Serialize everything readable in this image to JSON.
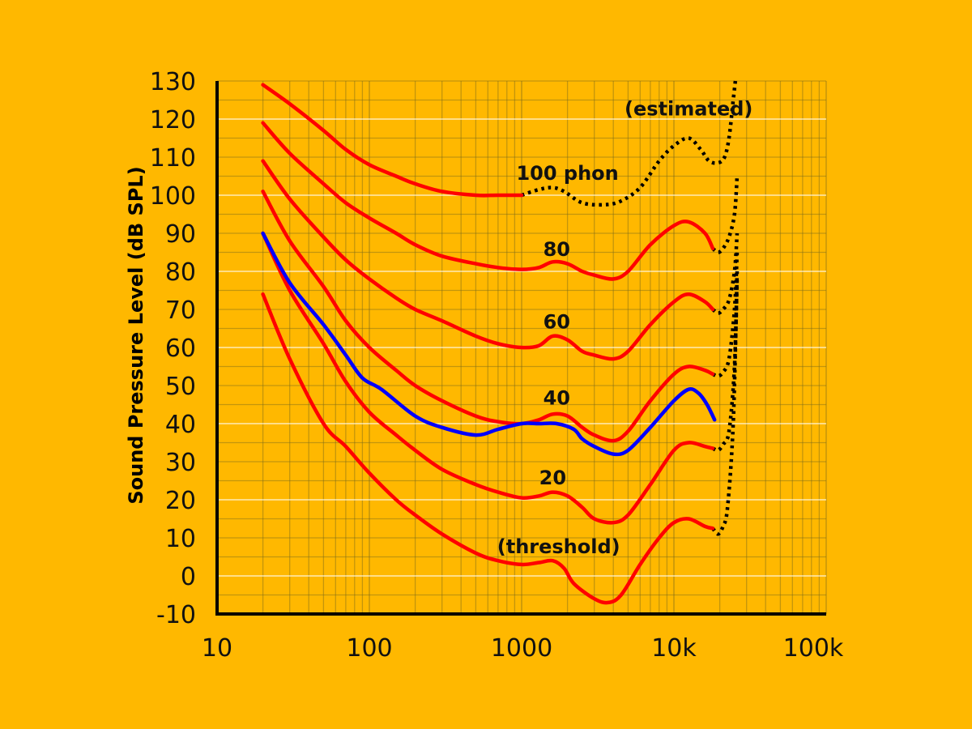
{
  "chart_data": {
    "type": "line",
    "title": "",
    "xlabel": "",
    "ylabel": "Sound Pressure Level (dB SPL)",
    "x_scale": "log",
    "xlim": [
      10,
      100000
    ],
    "ylim": [
      -10,
      130
    ],
    "x_ticks": [
      10,
      100,
      1000,
      10000,
      100000
    ],
    "x_tick_labels": [
      "10",
      "100",
      "1000",
      "10k",
      "100k"
    ],
    "y_ticks": [
      -10,
      0,
      10,
      20,
      30,
      40,
      50,
      60,
      70,
      80,
      90,
      100,
      110,
      120,
      130
    ],
    "y_tick_labels": [
      "-10",
      "0",
      "10",
      "20",
      "30",
      "40",
      "50",
      "60",
      "70",
      "80",
      "90",
      "100",
      "110",
      "120",
      "130"
    ],
    "grid": true,
    "background": "#FFB800",
    "series": [
      {
        "id": "threshold",
        "color": "#FF0000",
        "style": "solid",
        "points": [
          [
            20,
            74
          ],
          [
            30,
            57
          ],
          [
            50,
            40
          ],
          [
            70,
            34
          ],
          [
            100,
            27
          ],
          [
            150,
            20
          ],
          [
            200,
            16
          ],
          [
            300,
            11
          ],
          [
            500,
            6
          ],
          [
            700,
            4
          ],
          [
            1000,
            3
          ],
          [
            1300,
            3.5
          ],
          [
            1600,
            4
          ],
          [
            1900,
            2
          ],
          [
            2200,
            -2
          ],
          [
            3000,
            -6
          ],
          [
            3700,
            -7
          ],
          [
            4500,
            -5
          ],
          [
            6000,
            3
          ],
          [
            8000,
            10
          ],
          [
            10000,
            14
          ],
          [
            12500,
            15
          ],
          [
            16000,
            13
          ],
          [
            18000,
            12.5
          ]
        ],
        "extension": [
          [
            18000,
            12.5
          ],
          [
            19500,
            11
          ],
          [
            21000,
            13
          ],
          [
            22500,
            18
          ],
          [
            24500,
            40
          ],
          [
            26000,
            78
          ]
        ]
      },
      {
        "id": "20-phon",
        "color": "#FF0000",
        "style": "solid",
        "points": [
          [
            20,
            90
          ],
          [
            30,
            75
          ],
          [
            50,
            61
          ],
          [
            70,
            51
          ],
          [
            100,
            43
          ],
          [
            150,
            37
          ],
          [
            200,
            33
          ],
          [
            300,
            28
          ],
          [
            500,
            24
          ],
          [
            700,
            22
          ],
          [
            1000,
            20.5
          ],
          [
            1300,
            21
          ],
          [
            1600,
            22
          ],
          [
            2000,
            21
          ],
          [
            2500,
            18
          ],
          [
            3000,
            15
          ],
          [
            4000,
            14
          ],
          [
            5000,
            16
          ],
          [
            7000,
            24
          ],
          [
            10000,
            33
          ],
          [
            12500,
            35
          ],
          [
            16000,
            34
          ],
          [
            18000,
            33.5
          ]
        ],
        "extension": [
          [
            18000,
            33.5
          ],
          [
            19500,
            33
          ],
          [
            21000,
            34.5
          ],
          [
            23000,
            38
          ],
          [
            25000,
            55
          ],
          [
            26000,
            80
          ]
        ]
      },
      {
        "id": "40-phon",
        "color": "#FF0000",
        "style": "solid",
        "points": [
          [
            20,
            101
          ],
          [
            30,
            88
          ],
          [
            50,
            76
          ],
          [
            70,
            67
          ],
          [
            100,
            60
          ],
          [
            150,
            54
          ],
          [
            200,
            50
          ],
          [
            300,
            46
          ],
          [
            500,
            42
          ],
          [
            700,
            40.5
          ],
          [
            1000,
            40
          ],
          [
            1300,
            41
          ],
          [
            1600,
            42.5
          ],
          [
            2000,
            42
          ],
          [
            2500,
            39
          ],
          [
            3000,
            37
          ],
          [
            4000,
            35.5
          ],
          [
            5000,
            38
          ],
          [
            7000,
            46
          ],
          [
            10000,
            53
          ],
          [
            12500,
            55
          ],
          [
            16000,
            54
          ],
          [
            18000,
            53
          ]
        ],
        "extension": [
          [
            18000,
            53
          ],
          [
            19500,
            52.5
          ],
          [
            21000,
            53.5
          ],
          [
            23000,
            57
          ],
          [
            25000,
            70
          ],
          [
            26000,
            85
          ]
        ]
      },
      {
        "id": "60-phon",
        "color": "#FF0000",
        "style": "solid",
        "points": [
          [
            20,
            109
          ],
          [
            30,
            99
          ],
          [
            50,
            89
          ],
          [
            70,
            83
          ],
          [
            100,
            78
          ],
          [
            150,
            73
          ],
          [
            200,
            70
          ],
          [
            300,
            67
          ],
          [
            500,
            63
          ],
          [
            700,
            61
          ],
          [
            1000,
            60
          ],
          [
            1300,
            60.5
          ],
          [
            1600,
            63
          ],
          [
            2000,
            62
          ],
          [
            2500,
            59
          ],
          [
            3000,
            58
          ],
          [
            4000,
            57
          ],
          [
            5000,
            59
          ],
          [
            7000,
            66
          ],
          [
            10000,
            72
          ],
          [
            12500,
            74
          ],
          [
            16000,
            72
          ],
          [
            18000,
            70
          ]
        ],
        "extension": [
          [
            18000,
            70
          ],
          [
            19500,
            69
          ],
          [
            21000,
            70
          ],
          [
            23000,
            72.5
          ],
          [
            25000,
            80
          ],
          [
            26000,
            90
          ]
        ]
      },
      {
        "id": "80-phon",
        "color": "#FF0000",
        "style": "solid",
        "points": [
          [
            20,
            119
          ],
          [
            30,
            111
          ],
          [
            50,
            103
          ],
          [
            70,
            98
          ],
          [
            100,
            94
          ],
          [
            150,
            90
          ],
          [
            200,
            87
          ],
          [
            300,
            84
          ],
          [
            500,
            82
          ],
          [
            700,
            81
          ],
          [
            1000,
            80.5
          ],
          [
            1300,
            81
          ],
          [
            1600,
            82.5
          ],
          [
            2000,
            82
          ],
          [
            2500,
            80
          ],
          [
            3000,
            79
          ],
          [
            4000,
            78
          ],
          [
            5000,
            80
          ],
          [
            7000,
            87
          ],
          [
            10000,
            92
          ],
          [
            12500,
            93
          ],
          [
            16000,
            90
          ],
          [
            18000,
            86
          ]
        ],
        "extension": [
          [
            18000,
            86
          ],
          [
            19500,
            85
          ],
          [
            21000,
            86
          ],
          [
            23000,
            89
          ],
          [
            25000,
            95
          ],
          [
            26000,
            105
          ]
        ]
      },
      {
        "id": "100-phon",
        "color": "#FF0000",
        "style": "solid",
        "points": [
          [
            20,
            129
          ],
          [
            30,
            124
          ],
          [
            50,
            117
          ],
          [
            70,
            112
          ],
          [
            100,
            108
          ],
          [
            150,
            105
          ],
          [
            200,
            103
          ],
          [
            300,
            101
          ],
          [
            500,
            100
          ],
          [
            700,
            100
          ],
          [
            1000,
            100
          ]
        ],
        "extension": [
          [
            1000,
            100
          ],
          [
            1300,
            101.5
          ],
          [
            1600,
            102
          ],
          [
            1900,
            101
          ],
          [
            2500,
            98
          ],
          [
            3500,
            97.5
          ],
          [
            4500,
            98.5
          ],
          [
            6000,
            102
          ],
          [
            8000,
            109
          ],
          [
            10000,
            113
          ],
          [
            12500,
            115
          ],
          [
            15000,
            112
          ],
          [
            17000,
            109
          ],
          [
            19500,
            108.5
          ],
          [
            21500,
            110
          ],
          [
            23000,
            115
          ],
          [
            24500,
            125
          ],
          [
            25500,
            131
          ]
        ]
      },
      {
        "id": "40-phon-alt",
        "color": "#0000FF",
        "style": "solid",
        "points": [
          [
            20,
            90
          ],
          [
            30,
            77
          ],
          [
            50,
            66
          ],
          [
            70,
            58
          ],
          [
            90,
            52
          ],
          [
            120,
            49
          ],
          [
            200,
            42
          ],
          [
            300,
            39
          ],
          [
            500,
            37
          ],
          [
            700,
            38.5
          ],
          [
            1000,
            40
          ],
          [
            1300,
            40
          ],
          [
            1700,
            40
          ],
          [
            2200,
            38.5
          ],
          [
            2500,
            36
          ],
          [
            3000,
            34
          ],
          [
            4000,
            32
          ],
          [
            5000,
            33
          ],
          [
            7000,
            39
          ],
          [
            10000,
            46
          ],
          [
            12500,
            49
          ],
          [
            14500,
            48
          ],
          [
            16500,
            45
          ],
          [
            18500,
            41
          ]
        ]
      }
    ],
    "annotations": [
      {
        "text": "(estimated)",
        "x": 12500,
        "y": 121
      },
      {
        "text": "100 phon",
        "x": 2000,
        "y": 104
      },
      {
        "text": "80",
        "x": 1700,
        "y": 84
      },
      {
        "text": "60",
        "x": 1700,
        "y": 65
      },
      {
        "text": "40",
        "x": 1700,
        "y": 45
      },
      {
        "text": "20",
        "x": 1600,
        "y": 24
      },
      {
        "text": "(threshold)",
        "x": 1750,
        "y": 6
      }
    ]
  }
}
